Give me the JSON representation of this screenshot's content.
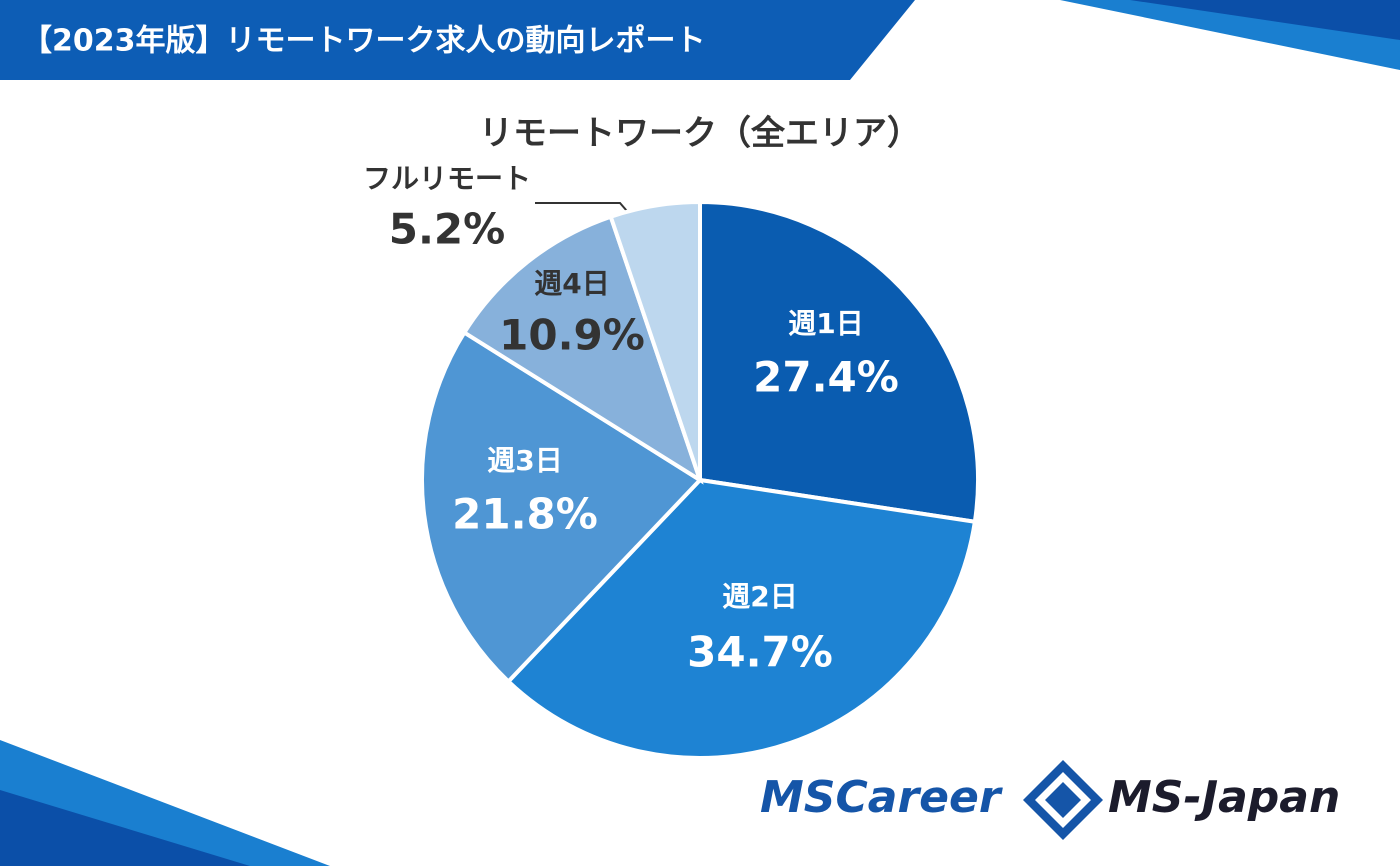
{
  "header": {
    "title": "【2023年版】リモートワーク求人の動向レポート"
  },
  "chart_data": {
    "type": "pie",
    "title": "リモートワーク（全エリア）",
    "categories": [
      "週1日",
      "週2日",
      "週3日",
      "週4日",
      "フルリモート"
    ],
    "values": [
      27.4,
      34.7,
      21.8,
      10.9,
      5.2
    ],
    "value_labels": [
      "27.4%",
      "34.7%",
      "21.8%",
      "10.9%",
      "5.2%"
    ],
    "colors": [
      "#0a5cb0",
      "#1e83d3",
      "#4f96d4",
      "#87b1db",
      "#bdd7ee"
    ]
  },
  "logos": [
    "MSCareer",
    "MS-Japan"
  ]
}
